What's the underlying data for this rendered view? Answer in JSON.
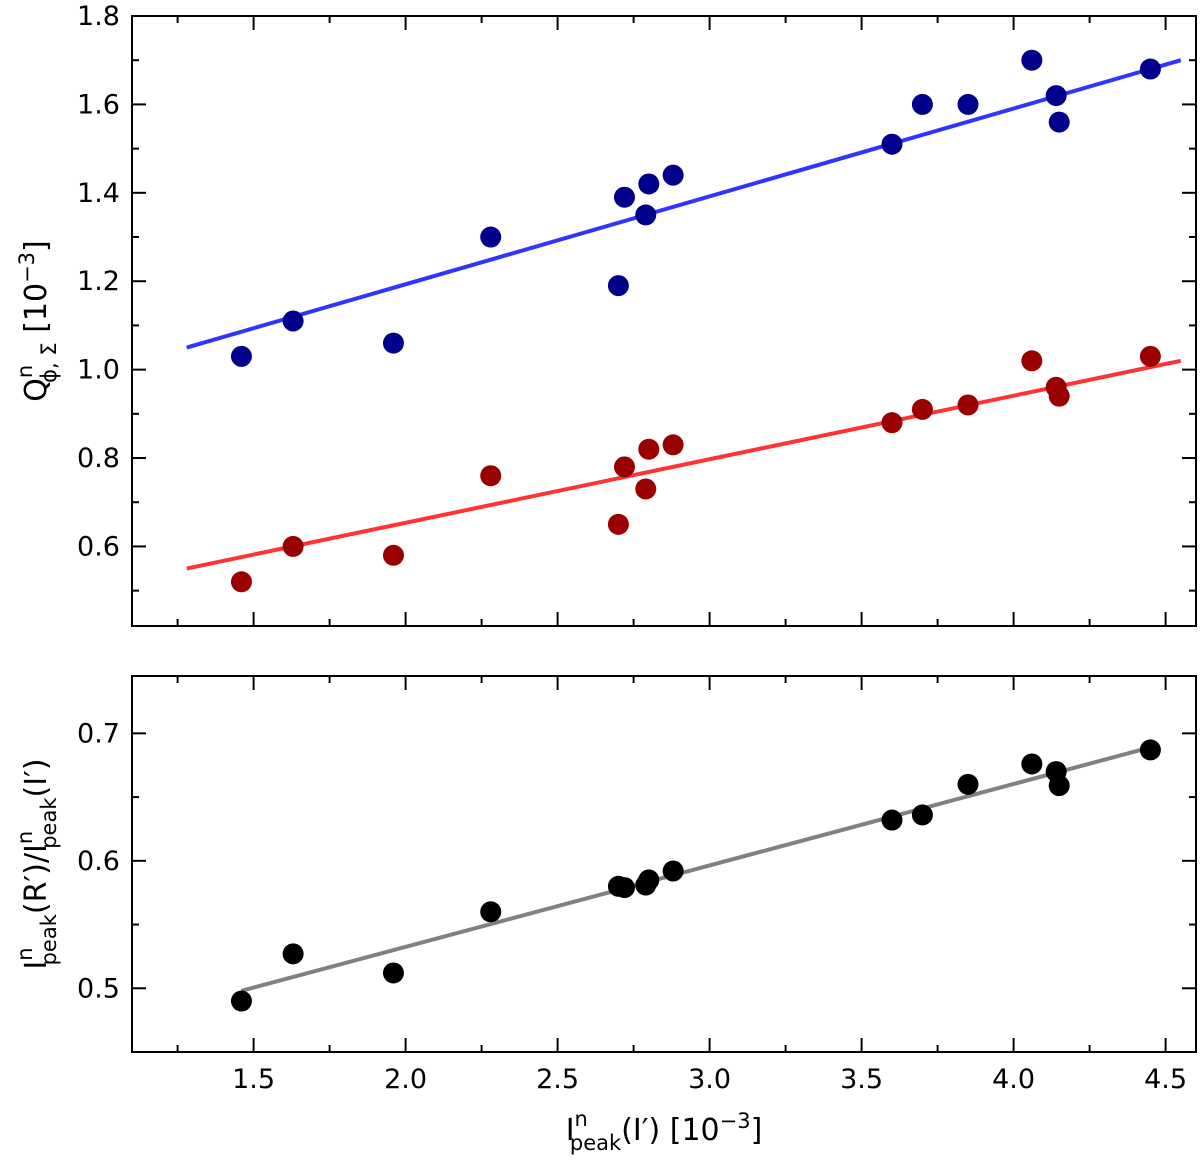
{
  "chart_data": [
    {
      "type": "scatter",
      "panel": "top",
      "title": "",
      "xlabel": {
        "base": "I",
        "sup": "n",
        "sub": "peak",
        "tail": "(I′) [10",
        "exp": "−3",
        "end": "]"
      },
      "ylabel": {
        "base": "Q",
        "sup": "n",
        "sub": "ϕ, Σ",
        "tail": " [10",
        "exp": "−3",
        "end": "]"
      },
      "xlim": [
        1.1,
        4.6
      ],
      "ylim": [
        0.42,
        1.8
      ],
      "x_ticks": [
        "1.5",
        "2.0",
        "2.5",
        "3.0",
        "3.5",
        "4.0",
        "4.5"
      ],
      "y_ticks": [
        "0.6",
        "0.8",
        "1.0",
        "1.2",
        "1.4",
        "1.6",
        "1.8"
      ],
      "x": [
        1.46,
        1.63,
        1.96,
        2.28,
        2.7,
        2.72,
        2.79,
        2.8,
        2.88,
        3.6,
        3.7,
        3.85,
        4.06,
        4.14,
        4.15,
        4.45
      ],
      "series": [
        {
          "name": "blue",
          "color": "#00008b",
          "fit_color": "#3333ff",
          "values": [
            1.03,
            1.11,
            1.06,
            1.3,
            1.19,
            1.39,
            1.35,
            1.42,
            1.44,
            1.51,
            1.6,
            1.6,
            1.7,
            1.62,
            1.56,
            1.68
          ],
          "fit": {
            "x": [
              1.28,
              4.55
            ],
            "y": [
              1.05,
              1.7
            ]
          }
        },
        {
          "name": "red",
          "color": "#9b0000",
          "fit_color": "#ff3333",
          "values": [
            0.52,
            0.6,
            0.58,
            0.76,
            0.65,
            0.78,
            0.73,
            0.82,
            0.83,
            0.88,
            0.91,
            0.92,
            1.02,
            0.96,
            0.94,
            1.03
          ],
          "fit": {
            "x": [
              1.28,
              4.55
            ],
            "y": [
              0.55,
              1.02
            ]
          }
        }
      ]
    },
    {
      "type": "scatter",
      "panel": "bottom",
      "title": "",
      "xlabel": {
        "base": "I",
        "sup": "n",
        "sub": "peak",
        "tail": "(I′) [10",
        "exp": "−3",
        "end": "]"
      },
      "ylabel": {
        "base": "I",
        "sup": "n",
        "sub": "peak",
        "tail": "(R′)/I",
        "sup2": "n",
        "sub2": "peak",
        "end": "(I′)"
      },
      "xlim": [
        1.1,
        4.6
      ],
      "ylim": [
        0.45,
        0.745
      ],
      "x_ticks": [
        "1.5",
        "2.0",
        "2.5",
        "3.0",
        "3.5",
        "4.0",
        "4.5"
      ],
      "y_ticks": [
        "0.5",
        "0.6",
        "0.7"
      ],
      "x": [
        1.46,
        1.63,
        1.96,
        2.28,
        2.7,
        2.72,
        2.79,
        2.8,
        2.88,
        3.6,
        3.7,
        3.85,
        4.06,
        4.14,
        4.15,
        4.45
      ],
      "series": [
        {
          "name": "black",
          "color": "#000000",
          "fit_color": "#808080",
          "values": [
            0.49,
            0.527,
            0.512,
            0.56,
            0.58,
            0.579,
            0.581,
            0.585,
            0.592,
            0.632,
            0.636,
            0.66,
            0.676,
            0.67,
            0.659,
            0.687
          ],
          "fit": {
            "x": [
              1.46,
              4.45
            ],
            "y": [
              0.498,
              0.689
            ]
          }
        }
      ]
    }
  ]
}
